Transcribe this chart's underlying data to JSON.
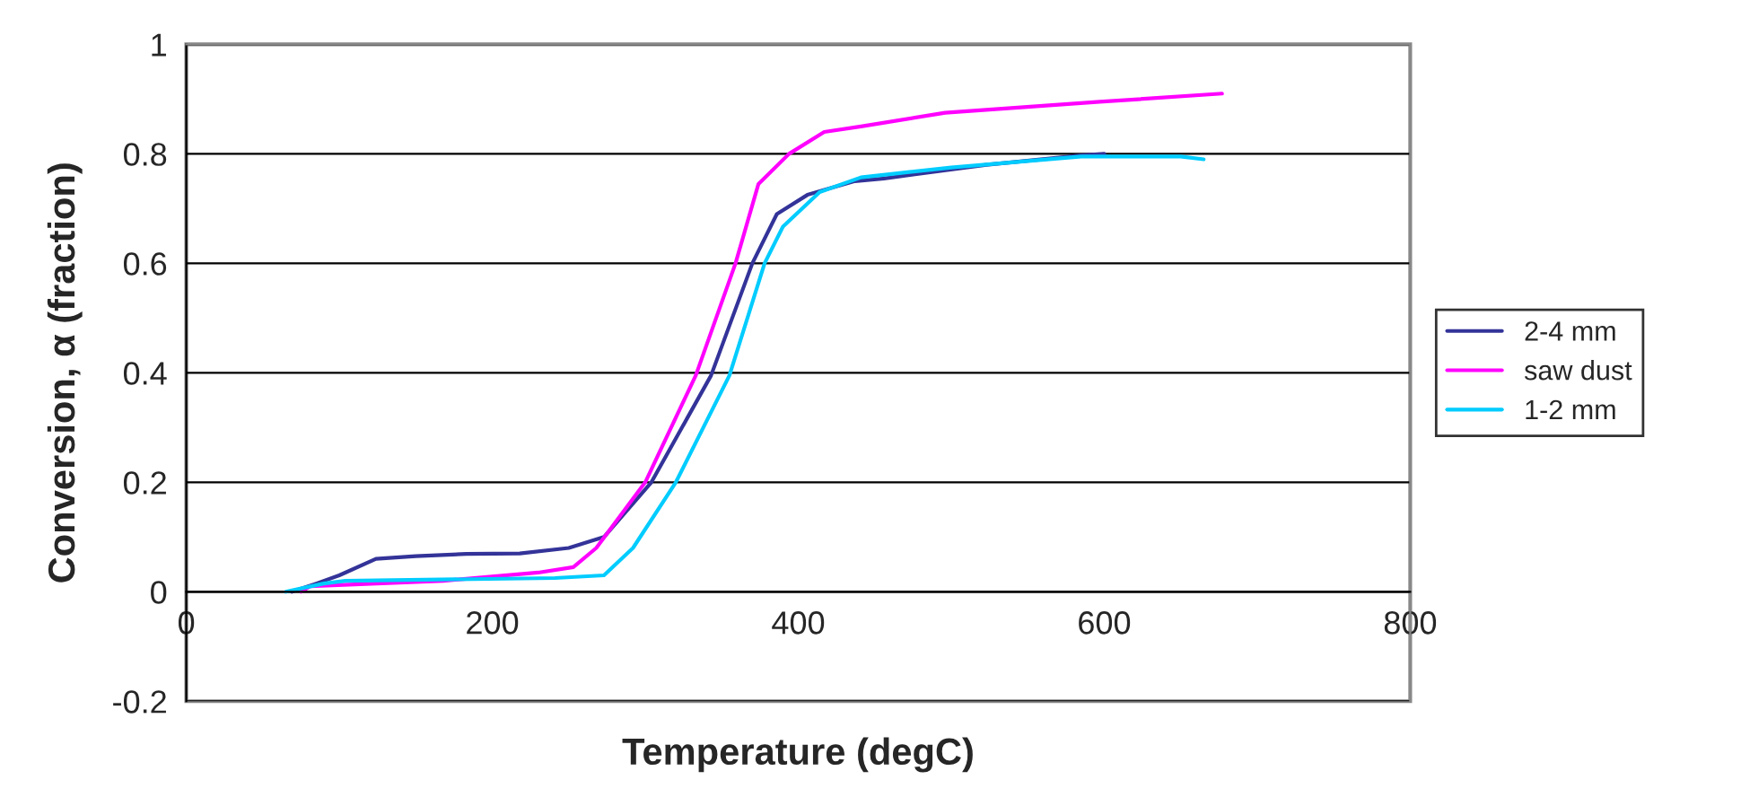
{
  "chart_data": {
    "type": "line",
    "xlabel": "Temperature (degC)",
    "ylabel": "Conversion, α (fraction)",
    "xlim": [
      0,
      800
    ],
    "xticks": [
      0,
      200,
      400,
      600,
      800
    ],
    "ylim": [
      -0.2,
      1
    ],
    "yticks": [
      -0.2,
      0,
      0.2,
      0.4,
      0.6,
      0.8,
      1
    ],
    "grid": "y",
    "legend": "right",
    "marker": "none",
    "line_style": "solid",
    "series": [
      {
        "name": "2-4 mm",
        "color": "#333399",
        "x": [
          69,
          85,
          100,
          124,
          150,
          183,
          218,
          250,
          273,
          304,
          343,
          370,
          386,
          406,
          437,
          456,
          523,
          585,
          600
        ],
        "values": [
          0,
          0.015,
          0.03,
          0.06,
          0.065,
          0.069,
          0.07,
          0.08,
          0.1,
          0.2,
          0.395,
          0.6,
          0.69,
          0.725,
          0.75,
          0.755,
          0.78,
          0.797,
          0.8
        ]
      },
      {
        "name": "saw dust",
        "color": "#ff00ff",
        "x": [
          75,
          81,
          168,
          230,
          253,
          268,
          300,
          333,
          359,
          374,
          394,
          417,
          441,
          496,
          597,
          677
        ],
        "values": [
          0,
          0.01,
          0.02,
          0.035,
          0.045,
          0.08,
          0.2,
          0.395,
          0.6,
          0.745,
          0.8,
          0.84,
          0.85,
          0.875,
          0.895,
          0.91
        ]
      },
      {
        "name": "1-2 mm",
        "color": "#00ccff",
        "x": [
          65,
          90,
          104,
          241,
          273,
          292,
          320,
          355,
          378,
          390,
          414,
          441,
          500,
          585,
          650,
          665
        ],
        "values": [
          0,
          0.015,
          0.02,
          0.025,
          0.03,
          0.08,
          0.2,
          0.395,
          0.6,
          0.667,
          0.73,
          0.757,
          0.775,
          0.795,
          0.795,
          0.79
        ]
      }
    ]
  }
}
